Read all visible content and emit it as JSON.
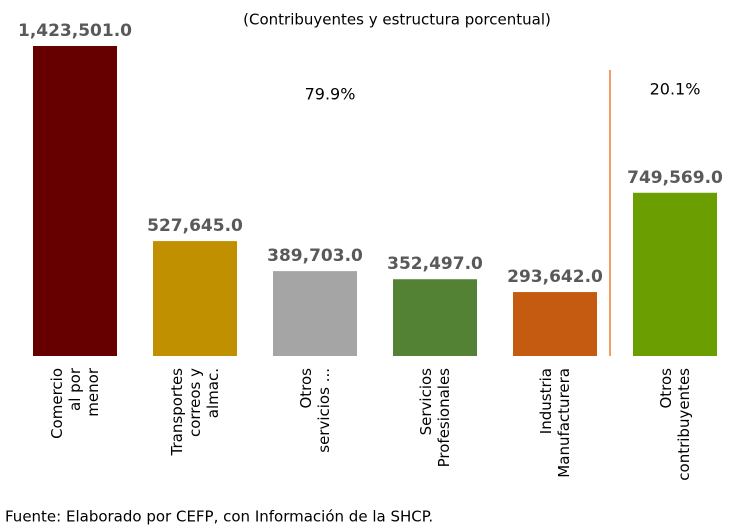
{
  "chart_data": {
    "type": "bar",
    "subtitle": "(Contribuyentes y estructura porcentual)",
    "categories": [
      [
        "Comercio",
        "al por",
        "menor"
      ],
      [
        "Transportes",
        "correos y",
        "almac."
      ],
      [
        "Otros",
        "servicios ..."
      ],
      [
        "Servicios",
        "Profesionales"
      ],
      [
        "Industria",
        "Manufacturera"
      ],
      [
        "Otros",
        "contribuyentes"
      ]
    ],
    "values": [
      1423501.0,
      527645.0,
      389703.0,
      352497.0,
      293642.0,
      749569.0
    ],
    "value_labels": [
      "1,423,501.0",
      "527,645.0",
      "389,703.0",
      "352,497.0",
      "293,642.0",
      "749,569.0"
    ],
    "colors": [
      "#660000",
      "#c09000",
      "#a5a5a5",
      "#548235",
      "#c55a11",
      "#6b9e00"
    ],
    "annotations": [
      "79.9%",
      "20.1%"
    ],
    "source": "Fuente: Elaborado por CEFP, con Información de la SHCP."
  }
}
